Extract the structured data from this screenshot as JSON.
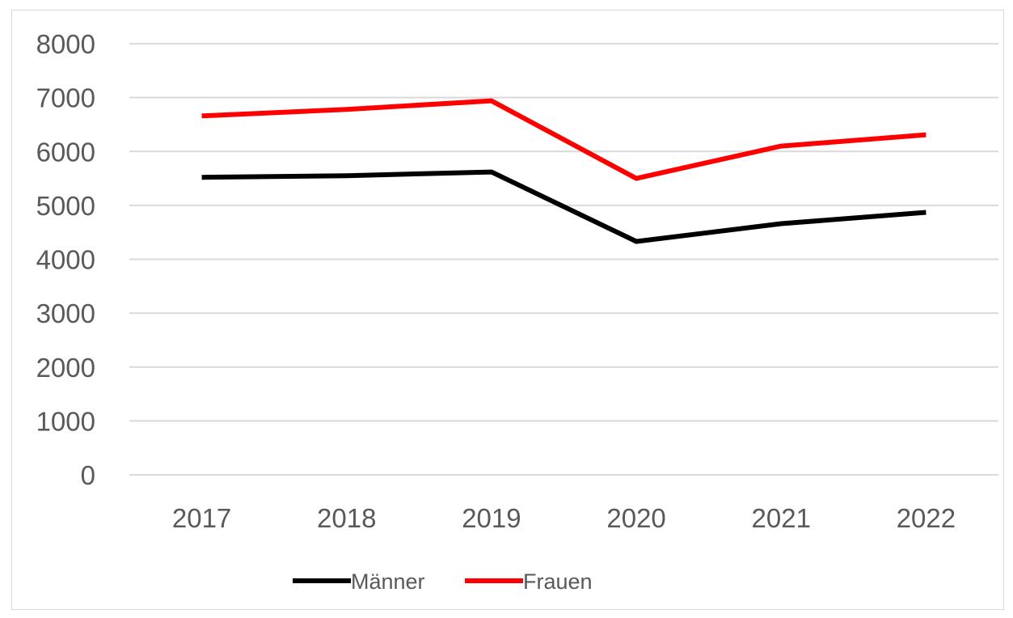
{
  "chart_data": {
    "type": "line",
    "title": "",
    "xlabel": "",
    "ylabel": "",
    "categories": [
      "2017",
      "2018",
      "2019",
      "2020",
      "2021",
      "2022"
    ],
    "ylim": [
      0,
      8000
    ],
    "yticks": [
      "0",
      "1000",
      "2000",
      "3000",
      "4000",
      "5000",
      "6000",
      "7000",
      "8000"
    ],
    "grid": true,
    "legend_position": "bottom",
    "series": [
      {
        "name": "Männer",
        "color": "#000000",
        "values": [
          5520,
          5550,
          5620,
          4330,
          4660,
          4870
        ]
      },
      {
        "name": "Frauen",
        "color": "#ff0000",
        "values": [
          6660,
          6780,
          6940,
          5500,
          6100,
          6310
        ]
      }
    ]
  }
}
